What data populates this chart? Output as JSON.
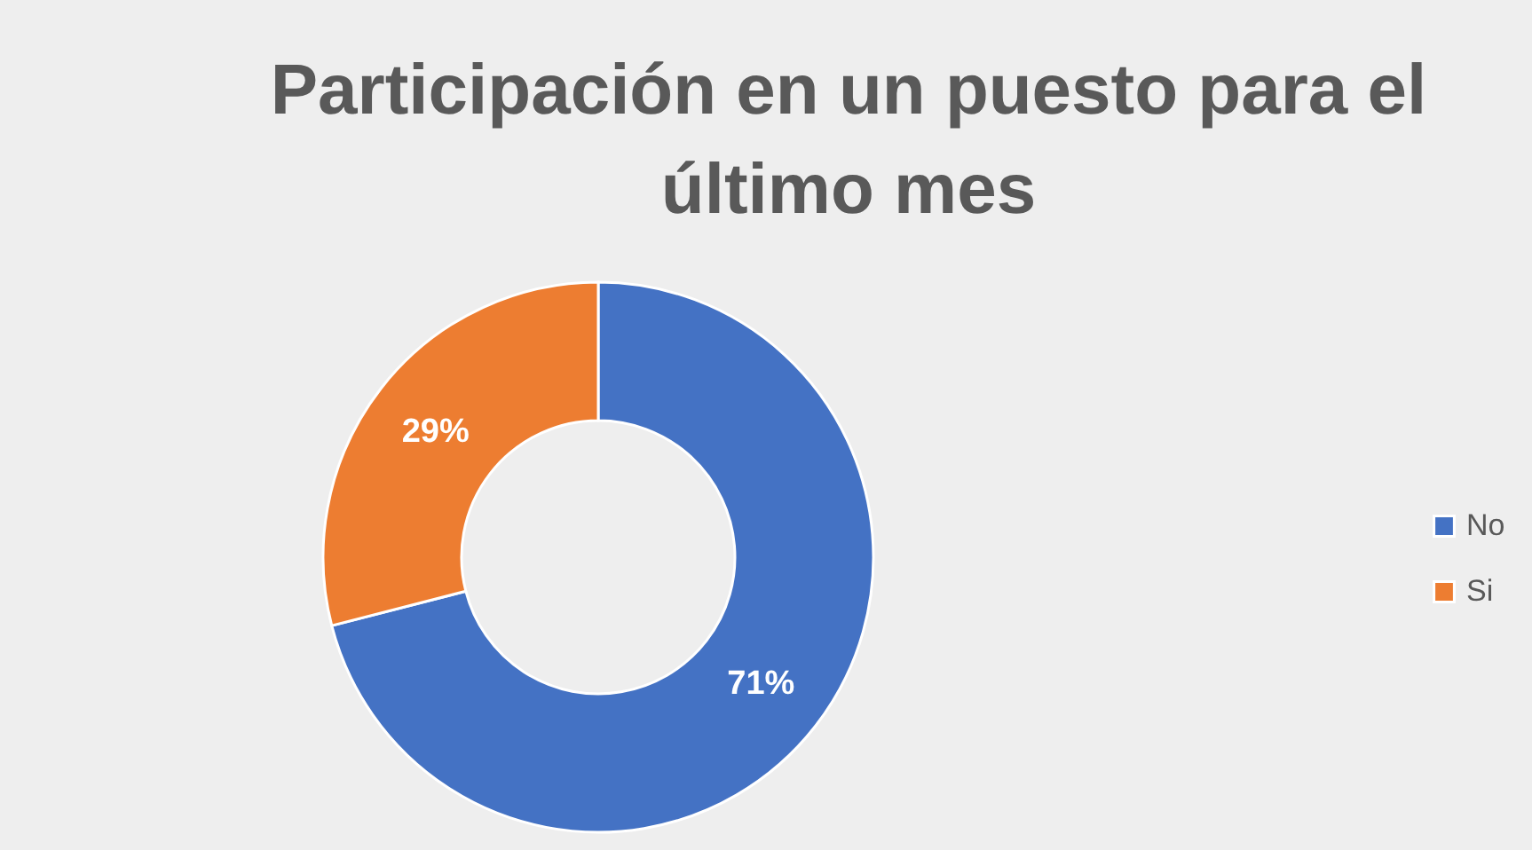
{
  "chart_data": {
    "type": "donut",
    "title": "Participación en un puesto para el último mes",
    "categories": [
      "No",
      "Si"
    ],
    "values": [
      71,
      29
    ],
    "colors": [
      "#4472c4",
      "#ed7d31"
    ],
    "value_labels": [
      "71%",
      "29%"
    ],
    "legend": "right"
  }
}
